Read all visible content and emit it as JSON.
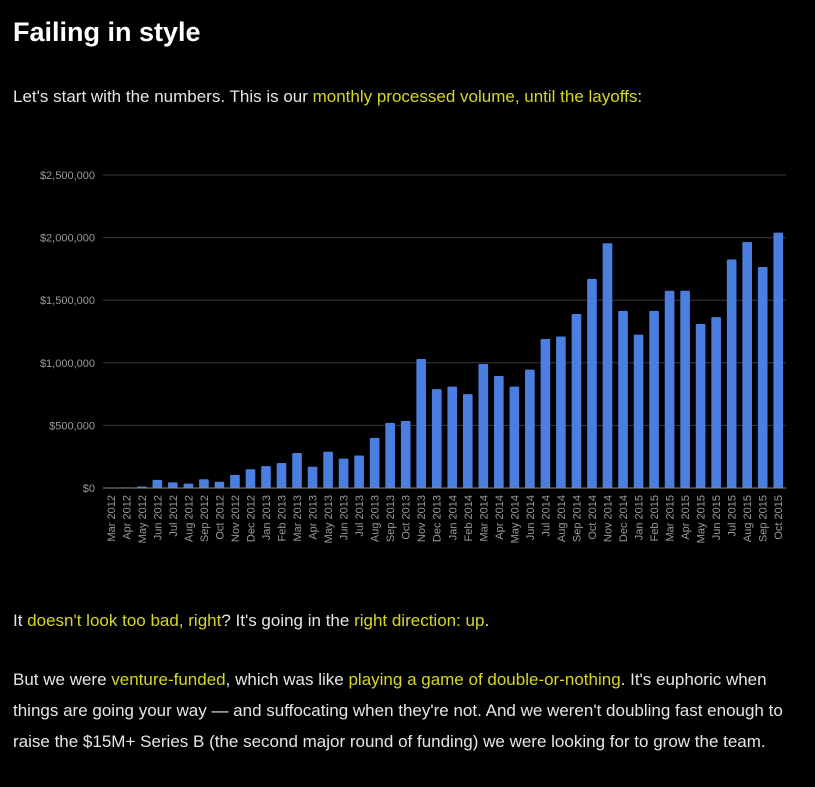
{
  "heading": "Failing in style",
  "intro": {
    "lead": "Let's start with the numbers. This is our ",
    "highlight": "monthly processed volume, until the layoffs",
    "tail": ":"
  },
  "after_chart": {
    "t1": "It ",
    "h1": "doesn't look too bad, right",
    "t2": "? It's going in the ",
    "h2": "right direction: up",
    "t3": "."
  },
  "funding": {
    "t1": "But we were ",
    "h1": "venture-funded",
    "t2": ", which was like ",
    "h2": "playing a game of double-or-nothing",
    "t3": ". It's euphoric when things are going your way — and suffocating when they're not. And we weren't doubling fast enough to raise the $15M+ Series B (the second major round of funding) we were looking for to grow the team."
  },
  "colors": {
    "background": "#000000",
    "bar": "#4a7fe0",
    "highlight": "#d6d627",
    "grid": "#3a3a3a",
    "tick_label": "#9a9a9a"
  },
  "chart_data": {
    "type": "bar",
    "title": "",
    "xlabel": "",
    "ylabel": "",
    "ylim": [
      0,
      2500000
    ],
    "yticks": [
      {
        "value": 0,
        "label": "$0"
      },
      {
        "value": 500000,
        "label": "$500,000"
      },
      {
        "value": 1000000,
        "label": "$1,000,000"
      },
      {
        "value": 1500000,
        "label": "$1,500,000"
      },
      {
        "value": 2000000,
        "label": "$2,000,000"
      },
      {
        "value": 2500000,
        "label": "$2,500,000"
      }
    ],
    "grid": true,
    "categories": [
      "Mar 2012",
      "Apr 2012",
      "May 2012",
      "Jun 2012",
      "Jul 2012",
      "Aug 2012",
      "Sep 2012",
      "Oct 2012",
      "Nov 2012",
      "Dec 2012",
      "Jan 2013",
      "Feb 2013",
      "Mar 2013",
      "Apr 2013",
      "May 2013",
      "Jun 2013",
      "Jul 2013",
      "Aug 2013",
      "Sep 2013",
      "Oct 2013",
      "Nov 2013",
      "Dec 2013",
      "Jan 2014",
      "Feb 2014",
      "Mar 2014",
      "Apr 2014",
      "May 2014",
      "Jun 2014",
      "Jul 2014",
      "Aug 2014",
      "Sep 2014",
      "Oct 2014",
      "Nov 2014",
      "Dec 2014",
      "Jan 2015",
      "Feb 2015",
      "Mar 2015",
      "Apr 2015",
      "May 2015",
      "Jun 2015",
      "Jul 2015",
      "Aug 2015",
      "Sep 2015",
      "Oct 2015"
    ],
    "values": [
      3000,
      5000,
      12000,
      65000,
      45000,
      35000,
      70000,
      50000,
      105000,
      150000,
      175000,
      200000,
      280000,
      170000,
      290000,
      235000,
      260000,
      400000,
      520000,
      535000,
      1030000,
      790000,
      810000,
      750000,
      990000,
      895000,
      810000,
      945000,
      1190000,
      1210000,
      1390000,
      1670000,
      1955000,
      1415000,
      1225000,
      1415000,
      1575000,
      1575000,
      1310000,
      1365000,
      1825000,
      1965000,
      1765000,
      2040000
    ]
  }
}
